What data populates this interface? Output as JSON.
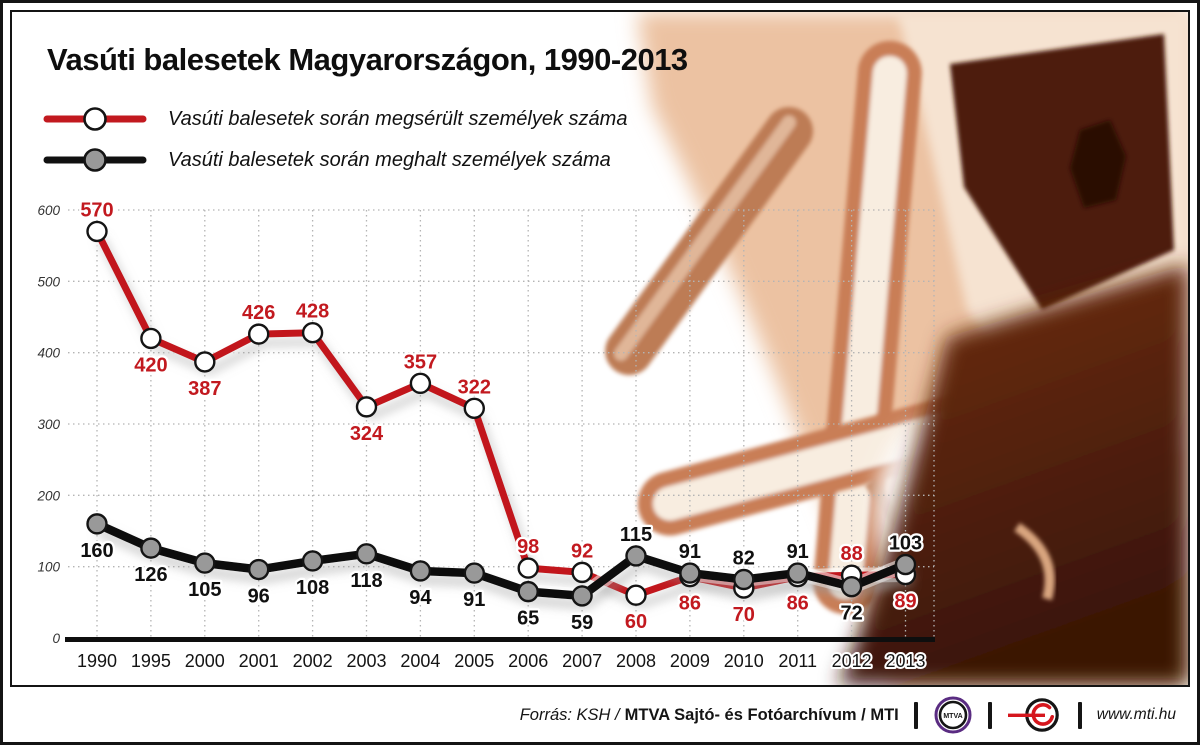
{
  "header": {
    "title": "Vasúti balesetek Magyarországon, 1990-2013"
  },
  "legend": {
    "items": [
      {
        "label": "Vasúti balesetek során megsérült személyek száma"
      },
      {
        "label": "Vasúti balesetek során meghalt személyek száma"
      }
    ]
  },
  "chart_data": {
    "type": "line",
    "categories": [
      "1990",
      "1995",
      "2000",
      "2001",
      "2002",
      "2003",
      "2004",
      "2005",
      "2006",
      "2007",
      "2008",
      "2009",
      "2010",
      "2011",
      "2012",
      "2013"
    ],
    "series": [
      {
        "name": "Vasúti balesetek során megsérült személyek száma",
        "color": "#c2191f",
        "marker_fill": "#ffffff",
        "stroke_width": 7,
        "values": [
          570,
          420,
          387,
          426,
          428,
          324,
          357,
          322,
          98,
          92,
          60,
          86,
          70,
          86,
          88,
          89
        ],
        "label_side": [
          "above",
          "below",
          "below",
          "above",
          "above",
          "below",
          "above",
          "above",
          "above",
          "above",
          "below",
          "below",
          "below",
          "below",
          "above",
          "below"
        ]
      },
      {
        "name": "Vasúti balesetek során meghalt személyek száma",
        "color": "#101010",
        "marker_fill": "#999999",
        "stroke_width": 8.5,
        "values": [
          160,
          126,
          105,
          96,
          108,
          118,
          94,
          91,
          65,
          59,
          115,
          91,
          82,
          91,
          72,
          103
        ],
        "label_side": [
          "below",
          "below",
          "below",
          "below",
          "below",
          "below",
          "below",
          "below",
          "below",
          "below",
          "above",
          "above",
          "above",
          "above",
          "below",
          "above"
        ]
      }
    ],
    "title": "Vasúti balesetek Magyarországon, 1990-2013",
    "xlabel": "",
    "ylabel": "",
    "ylim": [
      0,
      600
    ],
    "yticks": [
      0,
      100,
      200,
      300,
      400,
      500,
      600
    ],
    "grid": "dotted",
    "legend_position": "top-left"
  },
  "footer": {
    "source_prefix": "Forrás: KSH /",
    "source_bold": "MTVA Sajtó- és Fotóarchívum / MTI",
    "mtva_logo_text": "MTVA",
    "url": "www.mti.hu"
  },
  "colors": {
    "injured_red": "#c2191f",
    "deaths_black": "#101010",
    "sepia_light": "#f6e3d1",
    "sepia_mid": "#c97e57",
    "sepia_dark": "#3a1506",
    "mtva_purple": "#5a2c82",
    "mti_red": "#d5161d"
  }
}
